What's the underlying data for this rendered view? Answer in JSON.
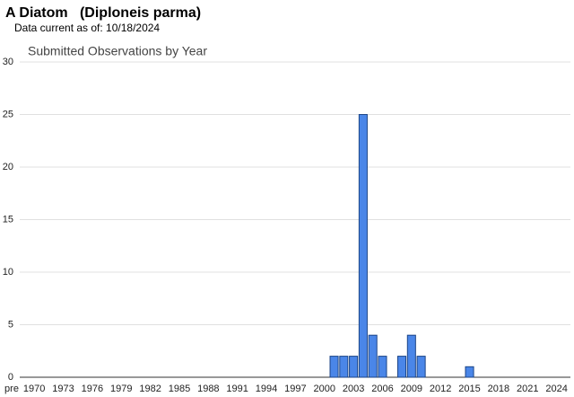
{
  "chart_data": {
    "type": "bar",
    "title": "A Diatom   (Diploneis parma)",
    "subtitle": "Data current as of: 10/18/2024",
    "chart_title": "Submitted Observations by Year",
    "categories": [
      "pre",
      "1970",
      null,
      null,
      "1973",
      null,
      null,
      "1976",
      null,
      null,
      "1979",
      null,
      null,
      "1982",
      null,
      null,
      "1985",
      null,
      null,
      "1988",
      null,
      null,
      "1991",
      null,
      null,
      "1994",
      null,
      null,
      "1997",
      null,
      null,
      "2000",
      null,
      null,
      "2003",
      null,
      null,
      "2006",
      null,
      null,
      "2009",
      null,
      null,
      "2012",
      null,
      null,
      "2015",
      null,
      null,
      "2018",
      null,
      null,
      "2021",
      null,
      null,
      "2024"
    ],
    "values": [
      0,
      0,
      0,
      0,
      0,
      0,
      0,
      0,
      0,
      0,
      0,
      0,
      0,
      0,
      0,
      0,
      0,
      0,
      0,
      0,
      0,
      0,
      0,
      0,
      0,
      0,
      0,
      0,
      0,
      0,
      0,
      0,
      2,
      2,
      2,
      25,
      4,
      2,
      0,
      2,
      4,
      2,
      0,
      0,
      0,
      0,
      1,
      0,
      0,
      0,
      0,
      0,
      0,
      0,
      0,
      0
    ],
    "color": "#4a86e8",
    "ylim": [
      0,
      30
    ],
    "yticks": [
      0,
      5,
      10,
      15,
      20,
      25,
      30
    ],
    "grid": true
  }
}
